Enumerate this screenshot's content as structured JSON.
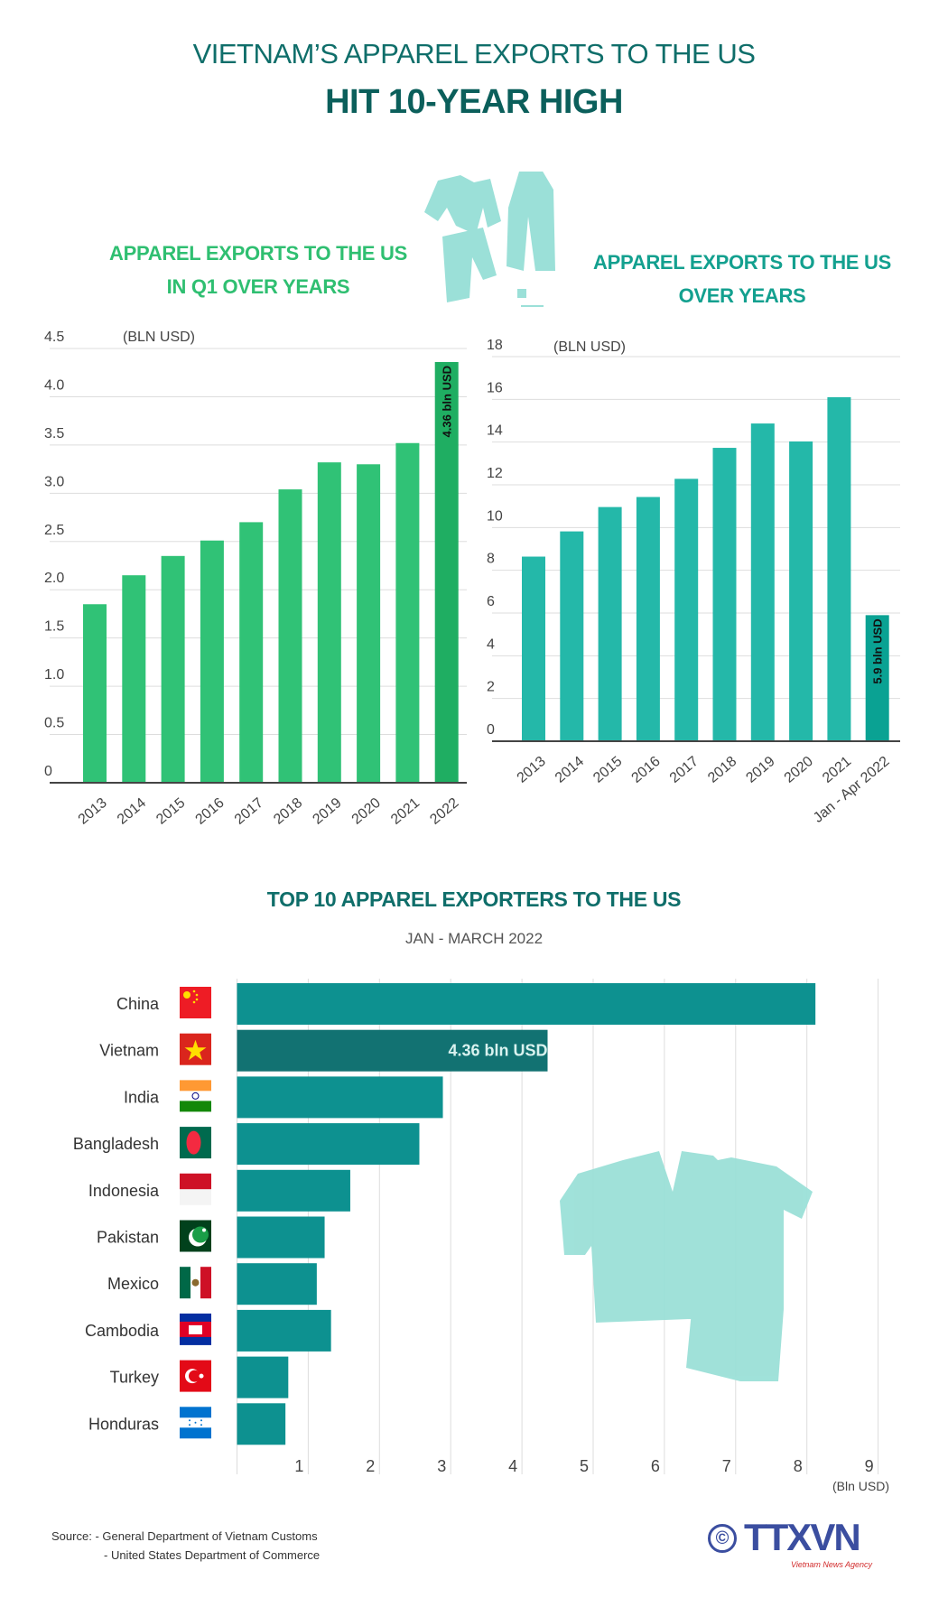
{
  "header": {
    "title_line1": "VIETNAM’S APPAREL EXPORTS TO THE US",
    "title_line2": "HIT 10-YEAR HIGH"
  },
  "colors": {
    "title": "#0f6e6a",
    "q1_bar": "#30c276",
    "q1_highlight": "#1fae62",
    "year_bar": "#24b8a9",
    "year_highlight": "#0aa293",
    "country_bar": "#0d9190",
    "vietnam_bar": "#127272",
    "illustration": "#9be0d8"
  },
  "chart_data": [
    {
      "type": "bar",
      "title_line1": "APPAREL EXPORTS TO THE US",
      "title_line2": "IN Q1 OVER YEARS",
      "ylabel": "(BLN USD)",
      "categories": [
        "2013",
        "2014",
        "2015",
        "2016",
        "2017",
        "2018",
        "2019",
        "2020",
        "2021",
        "2022"
      ],
      "values": [
        1.85,
        2.15,
        2.35,
        2.51,
        2.7,
        3.04,
        3.32,
        3.3,
        3.52,
        4.36
      ],
      "ylim": [
        0,
        4.5
      ],
      "yticks": [
        "0",
        "0.5",
        "1.0",
        "1.5",
        "2.0",
        "2.5",
        "3.0",
        "3.5",
        "4.0",
        "4.5"
      ],
      "grid": true,
      "annotation": {
        "index": 9,
        "text": "4.36 bln USD"
      }
    },
    {
      "type": "bar",
      "title_line1": "APPAREL EXPORTS TO THE US",
      "title_line2": "OVER YEARS",
      "ylabel": "(BLN USD)",
      "categories": [
        "2013",
        "2014",
        "2015",
        "2016",
        "2017",
        "2018",
        "2019",
        "2020",
        "2021",
        "Jan - Apr 2022"
      ],
      "values": [
        8.64,
        9.82,
        10.96,
        11.43,
        12.28,
        13.73,
        14.87,
        14.03,
        16.1,
        5.9
      ],
      "ylim": [
        0,
        18
      ],
      "yticks": [
        "0",
        "2",
        "4",
        "6",
        "8",
        "10",
        "12",
        "14",
        "16",
        "18"
      ],
      "grid": true,
      "annotation": {
        "index": 9,
        "text": "5.9 bln USD"
      }
    },
    {
      "type": "bar",
      "orientation": "horizontal",
      "title": "TOP 10 APPAREL EXPORTERS TO THE US",
      "subtitle": "JAN - MARCH 2022",
      "xlabel": "(Bln USD)",
      "categories": [
        "China",
        "Vietnam",
        "India",
        "Bangladesh",
        "Indonesia",
        "Pakistan",
        "Mexico",
        "Cambodia",
        "Turkey",
        "Honduras"
      ],
      "flags": [
        "china-flag",
        "vietnam-flag",
        "india-flag",
        "bangladesh-flag",
        "indonesia-flag",
        "pakistan-flag",
        "mexico-flag",
        "cambodia-flag",
        "turkey-flag",
        "honduras-flag"
      ],
      "values": [
        8.12,
        4.36,
        2.89,
        2.56,
        1.59,
        1.23,
        1.12,
        1.32,
        0.72,
        0.68
      ],
      "xlim": [
        0,
        9
      ],
      "xticks": [
        "1",
        "2",
        "3",
        "4",
        "5",
        "6",
        "7",
        "8",
        "9"
      ],
      "grid": true,
      "annotation": {
        "index": 1,
        "text": "4.36 bln USD"
      }
    }
  ],
  "footer": {
    "source_label": "Source:",
    "source_1": "-  General Department of Vietnam Customs",
    "source_2": "-  United States Department of Commerce",
    "logo_text": "TTXVN",
    "logo_sub": "Vietnam News Agency",
    "copyright": "©"
  }
}
